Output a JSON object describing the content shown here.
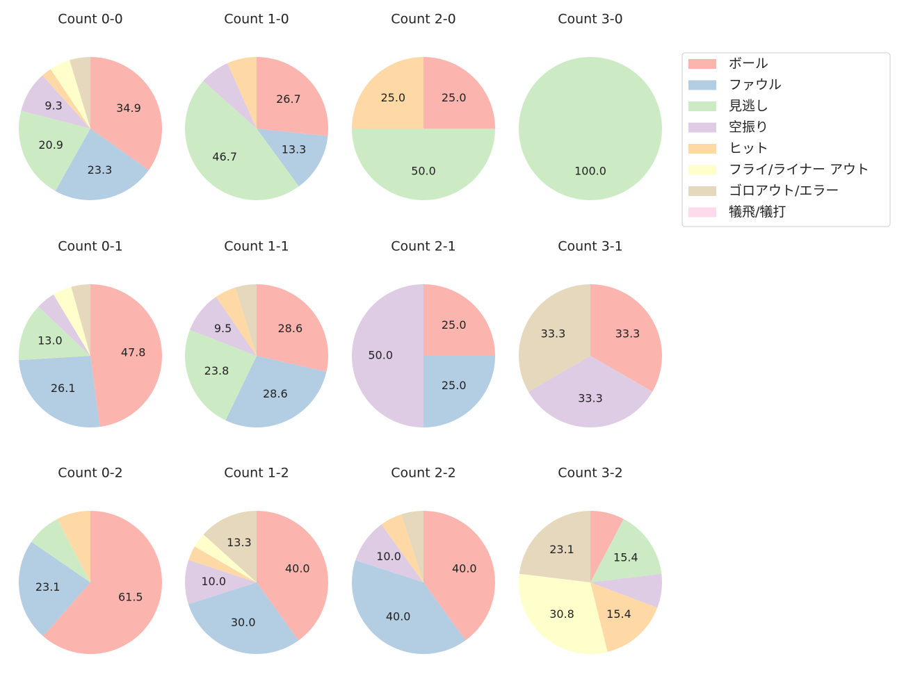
{
  "chart_data": [
    {
      "type": "pie",
      "title": "Count 0-0",
      "categories": [
        "ボール",
        "ファウル",
        "見逃し",
        "空振り",
        "ヒット",
        "フライ/ライナー アウト",
        "ゴロアウト/エラー",
        "犠飛/犠打"
      ],
      "colors": [
        "#fbb4ae",
        "#b3cde3",
        "#ccebc5",
        "#decbe4",
        "#fed9a6",
        "#ffffcc",
        "#e5d8bd",
        "#fddaec"
      ],
      "values": [
        34.9,
        23.3,
        20.9,
        9.3,
        2.3,
        4.7,
        4.7,
        0
      ],
      "value_labels": [
        "34.9",
        "23.3",
        "20.9",
        "9.3",
        null,
        null,
        null,
        null
      ]
    },
    {
      "type": "pie",
      "title": "Count 1-0",
      "categories": [
        "ボール",
        "ファウル",
        "見逃し",
        "空振り",
        "ヒット",
        "フライ/ライナー アウト",
        "ゴロアウト/エラー",
        "犠飛/犠打"
      ],
      "colors": [
        "#fbb4ae",
        "#b3cde3",
        "#ccebc5",
        "#decbe4",
        "#fed9a6",
        "#ffffcc",
        "#e5d8bd",
        "#fddaec"
      ],
      "values": [
        26.7,
        13.3,
        46.7,
        6.7,
        6.7,
        0,
        0,
        0
      ],
      "value_labels": [
        "26.7",
        "13.3",
        "46.7",
        null,
        null,
        null,
        null,
        null
      ]
    },
    {
      "type": "pie",
      "title": "Count 2-0",
      "categories": [
        "ボール",
        "ファウル",
        "見逃し",
        "空振り",
        "ヒット",
        "フライ/ライナー アウト",
        "ゴロアウト/エラー",
        "犠飛/犠打"
      ],
      "colors": [
        "#fbb4ae",
        "#b3cde3",
        "#ccebc5",
        "#decbe4",
        "#fed9a6",
        "#ffffcc",
        "#e5d8bd",
        "#fddaec"
      ],
      "values": [
        25,
        0,
        50,
        0,
        25,
        0,
        0,
        0
      ],
      "value_labels": [
        "25.0",
        null,
        "50.0",
        null,
        "25.0",
        null,
        null,
        null
      ]
    },
    {
      "type": "pie",
      "title": "Count 3-0",
      "categories": [
        "ボール",
        "ファウル",
        "見逃し",
        "空振り",
        "ヒット",
        "フライ/ライナー アウト",
        "ゴロアウト/エラー",
        "犠飛/犠打"
      ],
      "colors": [
        "#fbb4ae",
        "#b3cde3",
        "#ccebc5",
        "#decbe4",
        "#fed9a6",
        "#ffffcc",
        "#e5d8bd",
        "#fddaec"
      ],
      "values": [
        0,
        0,
        100,
        0,
        0,
        0,
        0,
        0
      ],
      "value_labels": [
        null,
        null,
        "100.0",
        null,
        null,
        null,
        null,
        null
      ]
    },
    {
      "type": "pie",
      "title": "Count 0-1",
      "categories": [
        "ボール",
        "ファウル",
        "見逃し",
        "空振り",
        "ヒット",
        "フライ/ライナー アウト",
        "ゴロアウト/エラー",
        "犠飛/犠打"
      ],
      "colors": [
        "#fbb4ae",
        "#b3cde3",
        "#ccebc5",
        "#decbe4",
        "#fed9a6",
        "#ffffcc",
        "#e5d8bd",
        "#fddaec"
      ],
      "values": [
        47.8,
        26.1,
        13.0,
        4.3,
        0,
        4.3,
        4.3,
        0
      ],
      "value_labels": [
        "47.8",
        "26.1",
        "13.0",
        null,
        null,
        null,
        null,
        null
      ]
    },
    {
      "type": "pie",
      "title": "Count 1-1",
      "categories": [
        "ボール",
        "ファウル",
        "見逃し",
        "空振り",
        "ヒット",
        "フライ/ライナー アウト",
        "ゴロアウト/エラー",
        "犠飛/犠打"
      ],
      "colors": [
        "#fbb4ae",
        "#b3cde3",
        "#ccebc5",
        "#decbe4",
        "#fed9a6",
        "#ffffcc",
        "#e5d8bd",
        "#fddaec"
      ],
      "values": [
        28.6,
        28.6,
        23.8,
        9.5,
        4.8,
        0,
        4.8,
        0
      ],
      "value_labels": [
        "28.6",
        "28.6",
        "23.8",
        "9.5",
        null,
        null,
        null,
        null
      ]
    },
    {
      "type": "pie",
      "title": "Count 2-1",
      "categories": [
        "ボール",
        "ファウル",
        "見逃し",
        "空振り",
        "ヒット",
        "フライ/ライナー アウト",
        "ゴロアウト/エラー",
        "犠飛/犠打"
      ],
      "colors": [
        "#fbb4ae",
        "#b3cde3",
        "#ccebc5",
        "#decbe4",
        "#fed9a6",
        "#ffffcc",
        "#e5d8bd",
        "#fddaec"
      ],
      "values": [
        25,
        25,
        0,
        50,
        0,
        0,
        0,
        0
      ],
      "value_labels": [
        "25.0",
        "25.0",
        null,
        "50.0",
        null,
        null,
        null,
        null
      ]
    },
    {
      "type": "pie",
      "title": "Count 3-1",
      "categories": [
        "ボール",
        "ファウル",
        "見逃し",
        "空振り",
        "ヒット",
        "フライ/ライナー アウト",
        "ゴロアウト/エラー",
        "犠飛/犠打"
      ],
      "colors": [
        "#fbb4ae",
        "#b3cde3",
        "#ccebc5",
        "#decbe4",
        "#fed9a6",
        "#ffffcc",
        "#e5d8bd",
        "#fddaec"
      ],
      "values": [
        33.3,
        0,
        0,
        33.3,
        0,
        0,
        33.3,
        0
      ],
      "value_labels": [
        "33.3",
        null,
        null,
        "33.3",
        null,
        null,
        "33.3",
        null
      ]
    },
    {
      "type": "pie",
      "title": "Count 0-2",
      "categories": [
        "ボール",
        "ファウル",
        "見逃し",
        "空振り",
        "ヒット",
        "フライ/ライナー アウト",
        "ゴロアウト/エラー",
        "犠飛/犠打"
      ],
      "colors": [
        "#fbb4ae",
        "#b3cde3",
        "#ccebc5",
        "#decbe4",
        "#fed9a6",
        "#ffffcc",
        "#e5d8bd",
        "#fddaec"
      ],
      "values": [
        61.5,
        23.1,
        7.7,
        0,
        7.7,
        0,
        0,
        0
      ],
      "value_labels": [
        "61.5",
        "23.1",
        null,
        null,
        null,
        null,
        null,
        null
      ]
    },
    {
      "type": "pie",
      "title": "Count 1-2",
      "categories": [
        "ボール",
        "ファウル",
        "見逃し",
        "空振り",
        "ヒット",
        "フライ/ライナー アウト",
        "ゴロアウト/エラー",
        "犠飛/犠打"
      ],
      "colors": [
        "#fbb4ae",
        "#b3cde3",
        "#ccebc5",
        "#decbe4",
        "#fed9a6",
        "#ffffcc",
        "#e5d8bd",
        "#fddaec"
      ],
      "values": [
        40,
        30,
        0,
        10,
        3.3,
        3.3,
        13.3,
        0
      ],
      "value_labels": [
        "40.0",
        "30.0",
        null,
        "10.0",
        null,
        null,
        "13.3",
        null
      ]
    },
    {
      "type": "pie",
      "title": "Count 2-2",
      "categories": [
        "ボール",
        "ファウル",
        "見逃し",
        "空振り",
        "ヒット",
        "フライ/ライナー アウト",
        "ゴロアウト/エラー",
        "犠飛/犠打"
      ],
      "colors": [
        "#fbb4ae",
        "#b3cde3",
        "#ccebc5",
        "#decbe4",
        "#fed9a6",
        "#ffffcc",
        "#e5d8bd",
        "#fddaec"
      ],
      "values": [
        40,
        40,
        0,
        10,
        5,
        0,
        5,
        0
      ],
      "value_labels": [
        "40.0",
        "40.0",
        null,
        "10.0",
        null,
        null,
        null,
        null
      ]
    },
    {
      "type": "pie",
      "title": "Count 3-2",
      "categories": [
        "ボール",
        "ファウル",
        "見逃し",
        "空振り",
        "ヒット",
        "フライ/ライナー アウト",
        "ゴロアウト/エラー",
        "犠飛/犠打"
      ],
      "colors": [
        "#fbb4ae",
        "#b3cde3",
        "#ccebc5",
        "#decbe4",
        "#fed9a6",
        "#ffffcc",
        "#e5d8bd",
        "#fddaec"
      ],
      "values": [
        7.7,
        0,
        15.4,
        7.7,
        15.4,
        30.8,
        23.1,
        0
      ],
      "value_labels": [
        null,
        null,
        "15.4",
        null,
        "15.4",
        "30.8",
        "23.1",
        null
      ]
    }
  ]
}
